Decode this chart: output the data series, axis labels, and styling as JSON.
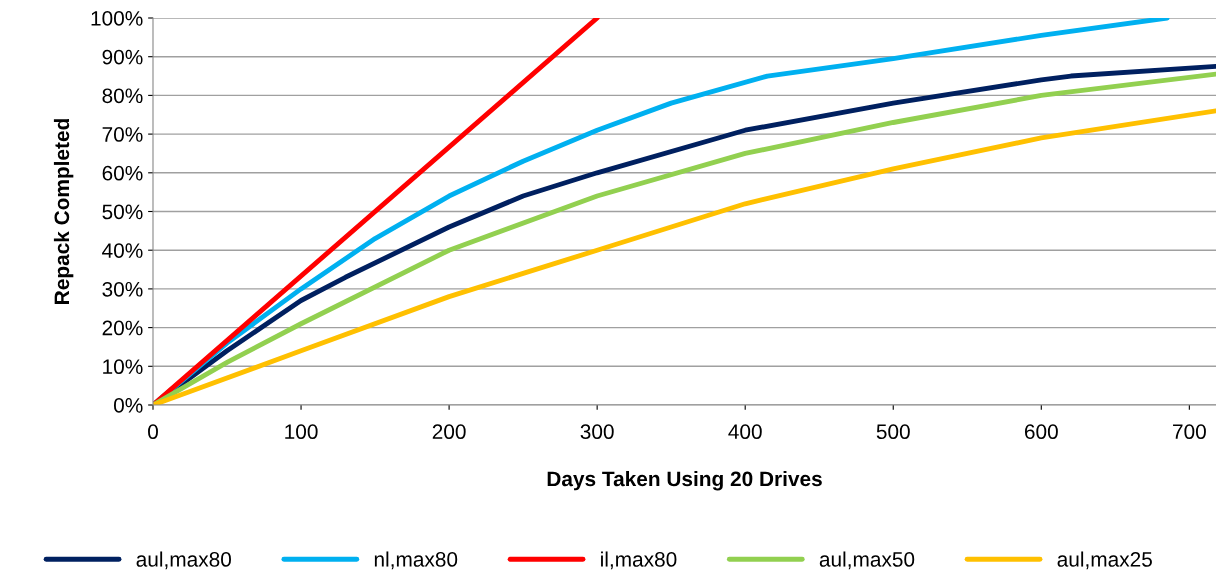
{
  "chart_data": {
    "type": "line",
    "xlabel": "Days Taken Using 20 Drives",
    "ylabel": "Repack Completed",
    "xlim": [
      0,
      718
    ],
    "xticks": [
      0,
      100,
      200,
      300,
      400,
      500,
      600,
      700
    ],
    "ylim": [
      0,
      1
    ],
    "yticks": [
      {
        "value": 0,
        "label": "0%"
      },
      {
        "value": 0.1,
        "label": "10%"
      },
      {
        "value": 0.2,
        "label": "20%"
      },
      {
        "value": 0.3,
        "label": "30%"
      },
      {
        "value": 0.4,
        "label": "40%"
      },
      {
        "value": 0.5,
        "label": "50%"
      },
      {
        "value": 0.6,
        "label": "60%"
      },
      {
        "value": 0.7,
        "label": "70%"
      },
      {
        "value": 0.8,
        "label": "80%"
      },
      {
        "value": 0.9,
        "label": "90%"
      },
      {
        "value": 1,
        "label": "100%"
      }
    ],
    "grid": "y",
    "legend": "bottom",
    "marker": "none",
    "line_style": "solid",
    "series": [
      {
        "name": "aul,max80",
        "color": "#002060",
        "x": [
          0,
          50,
          100,
          130,
          200,
          250,
          300,
          400,
          500,
          600,
          620,
          718
        ],
        "values": [
          0,
          0.14,
          0.27,
          0.33,
          0.46,
          0.54,
          0.6,
          0.71,
          0.78,
          0.84,
          0.85,
          0.875
        ]
      },
      {
        "name": "nl,max80",
        "color": "#00b0f0",
        "x": [
          0,
          50,
          100,
          150,
          200,
          250,
          300,
          350,
          415,
          500,
          600,
          685
        ],
        "values": [
          0,
          0.16,
          0.3,
          0.43,
          0.54,
          0.63,
          0.71,
          0.78,
          0.85,
          0.895,
          0.955,
          1.0
        ]
      },
      {
        "name": "il,max80",
        "color": "#ff0000",
        "x": [
          0,
          300
        ],
        "values": [
          0,
          1.0
        ]
      },
      {
        "name": "aul,max50",
        "color": "#92d050",
        "x": [
          0,
          50,
          100,
          200,
          300,
          400,
          500,
          600,
          718
        ],
        "values": [
          0,
          0.11,
          0.21,
          0.4,
          0.54,
          0.65,
          0.73,
          0.8,
          0.855
        ]
      },
      {
        "name": "aul,max25",
        "color": "#ffc000",
        "x": [
          0,
          100,
          200,
          300,
          400,
          500,
          600,
          718
        ],
        "values": [
          0,
          0.14,
          0.28,
          0.4,
          0.52,
          0.61,
          0.69,
          0.76
        ]
      }
    ]
  }
}
